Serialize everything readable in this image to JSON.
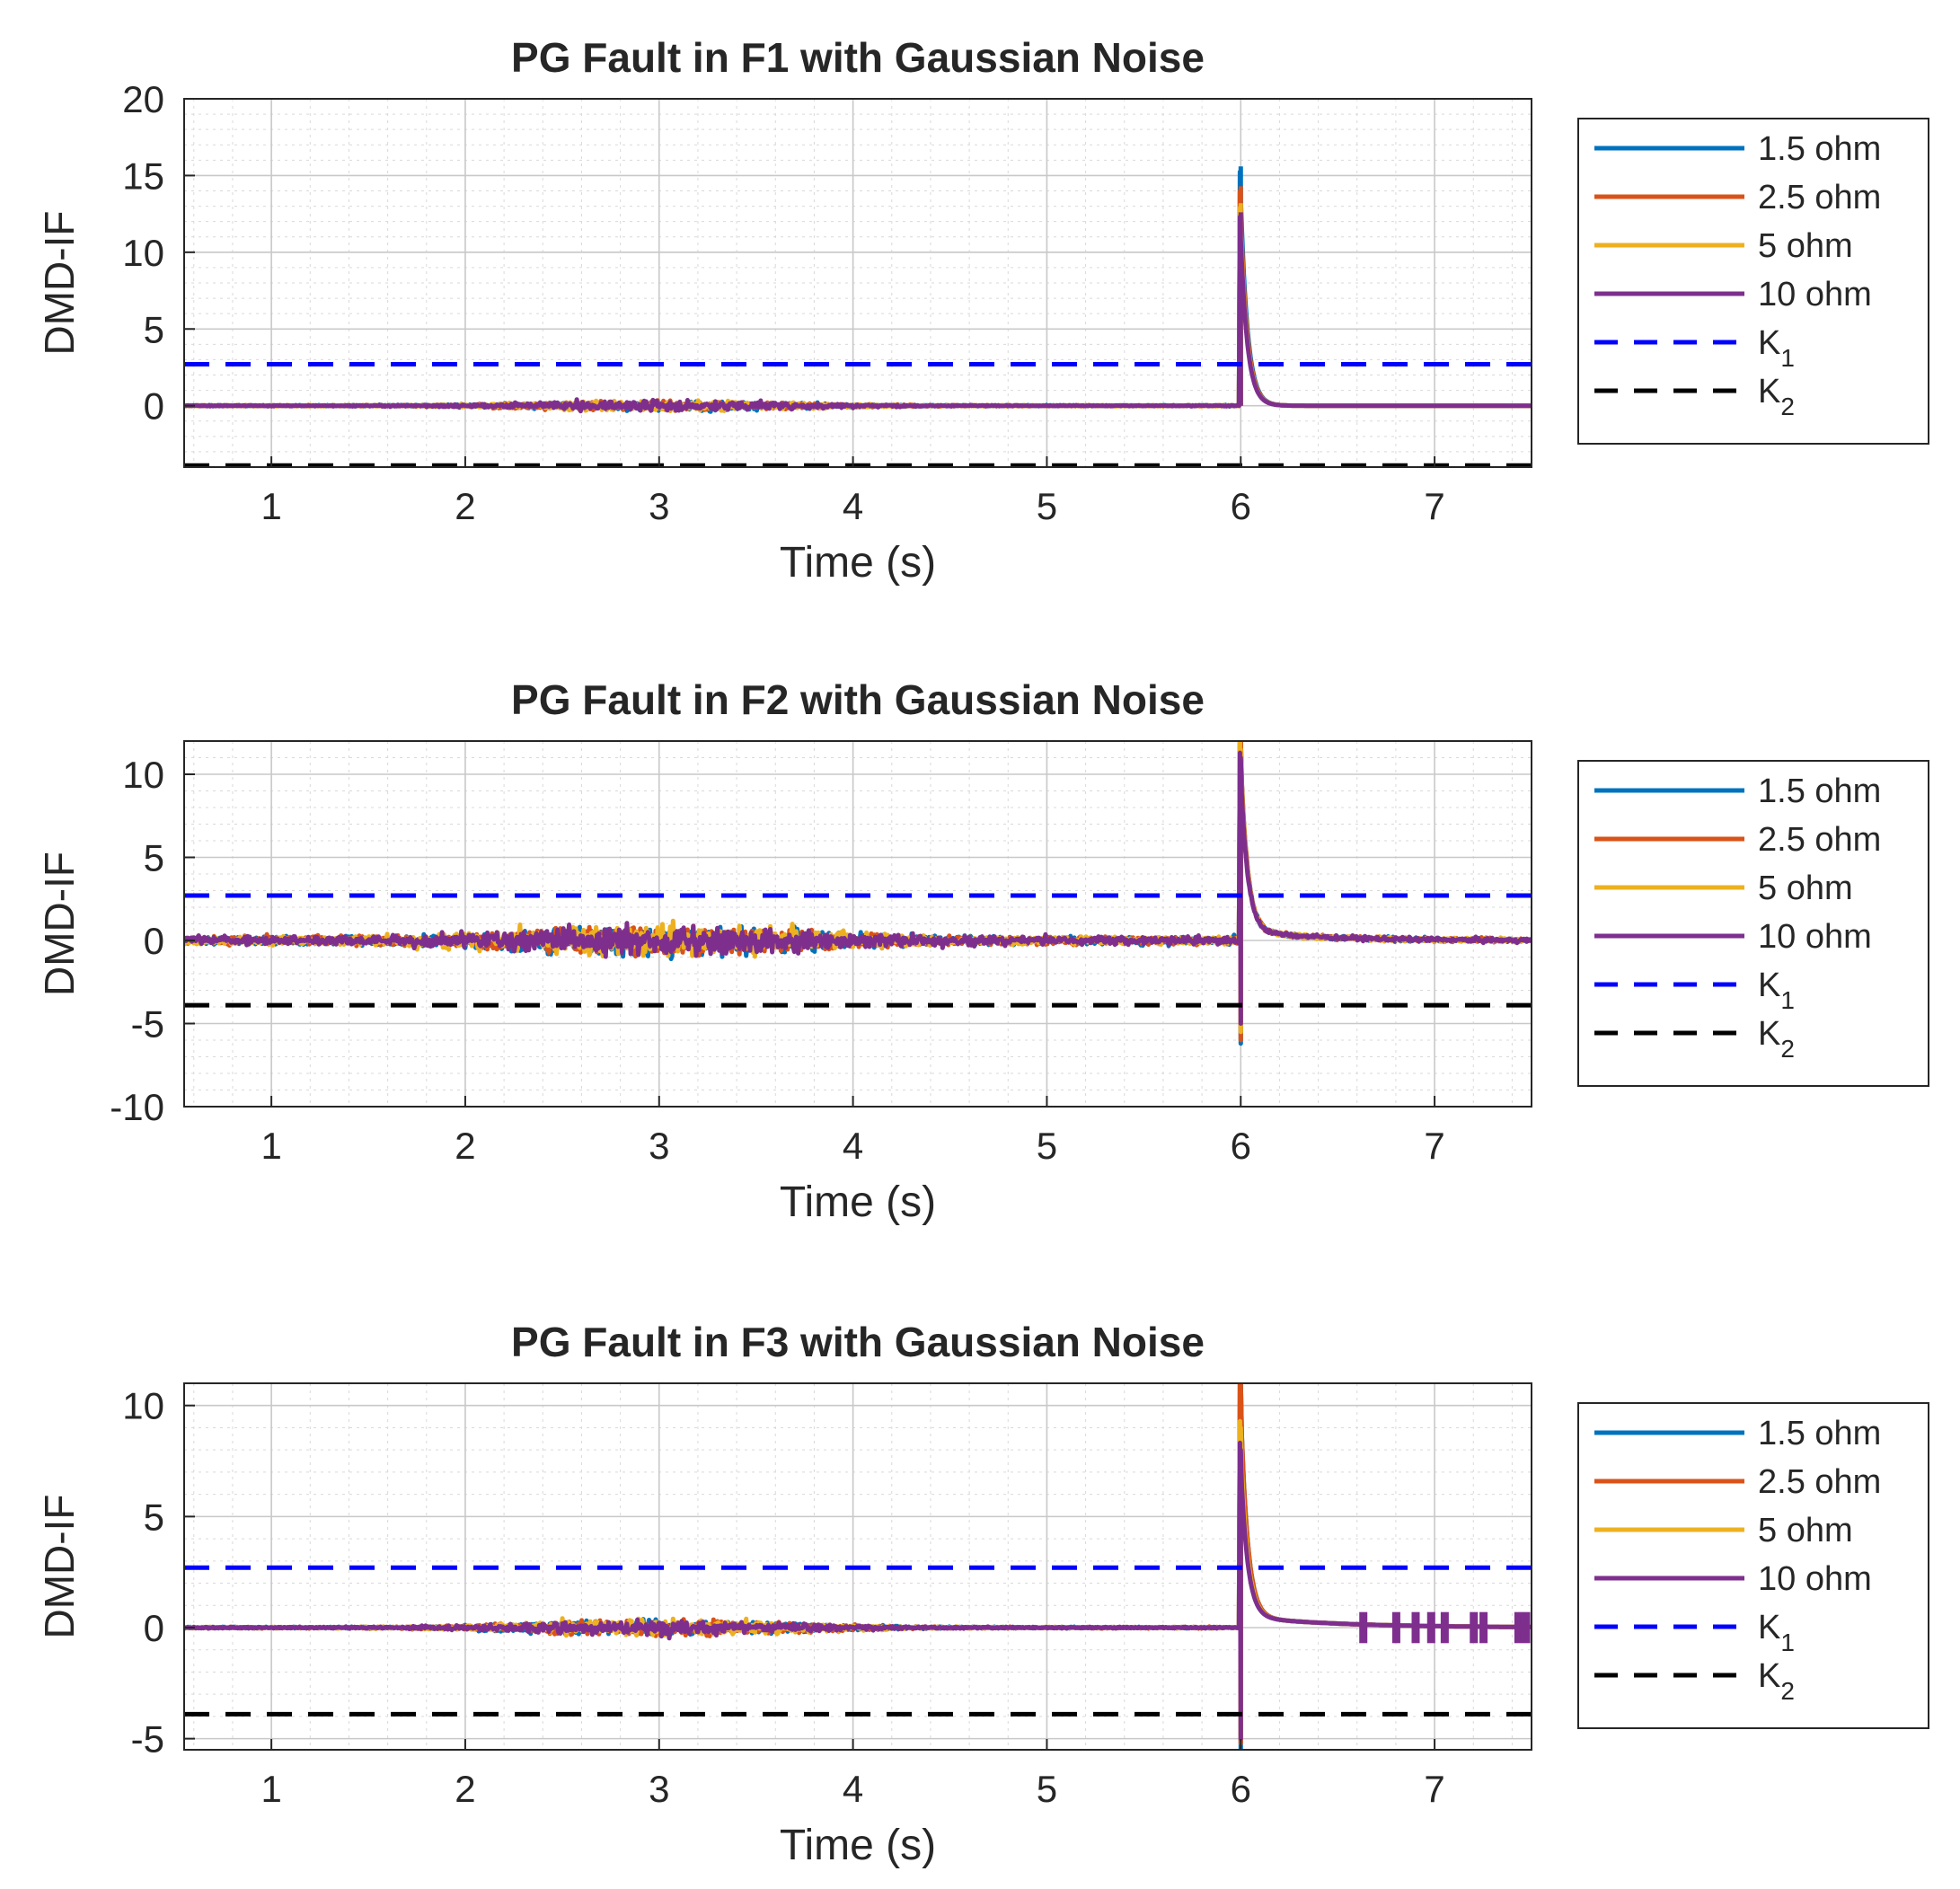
{
  "colors": {
    "s1": "#0072BD",
    "s2": "#D95319",
    "s3": "#EDB120",
    "s4": "#7E2F8E",
    "k1": "#0000FF",
    "k2": "#000000"
  },
  "chart_data": [
    {
      "type": "line",
      "title": "PG Fault in F1 with Gaussian Noise",
      "xlabel": "Time (s)",
      "ylabel": "DMD-IF",
      "xlim": [
        0.55,
        7.5
      ],
      "ylim": [
        -4,
        20
      ],
      "xticks": [
        "1",
        "2",
        "3",
        "4",
        "5",
        "6",
        "7"
      ],
      "yticks": [
        "0",
        "5",
        "10",
        "15",
        "20"
      ],
      "grid": true,
      "legend_location": "right-outside",
      "series": [
        {
          "name": "1.5 ohm",
          "color_key": "s1",
          "peak": 15.6,
          "noise": 0.55
        },
        {
          "name": "2.5 ohm",
          "color_key": "s2",
          "peak": 14.3,
          "noise": 0.55
        },
        {
          "name": "5 ohm",
          "color_key": "s3",
          "peak": 13.2,
          "noise": 0.55
        },
        {
          "name": "10 ohm",
          "color_key": "s4",
          "peak": 12.6,
          "noise": 0.55
        }
      ],
      "thresholds": [
        {
          "name": "K",
          "sub": "1",
          "value": 2.7,
          "color_key": "k1"
        },
        {
          "name": "K",
          "sub": "2",
          "value": -3.9,
          "color_key": "k2"
        }
      ]
    },
    {
      "type": "line",
      "title": "PG Fault in F2 with Gaussian Noise",
      "xlabel": "Time (s)",
      "ylabel": "DMD-IF",
      "xlim": [
        0.55,
        7.5
      ],
      "ylim": [
        -10,
        12
      ],
      "xticks": [
        "1",
        "2",
        "3",
        "4",
        "5",
        "6",
        "7"
      ],
      "yticks": [
        "-10",
        "-5",
        "0",
        "5",
        "10"
      ],
      "grid": true,
      "legend_location": "right-outside",
      "series": [
        {
          "name": "1.5 ohm",
          "color_key": "s1",
          "peak": 12,
          "trough": -6.2,
          "noise": 1.6
        },
        {
          "name": "2.5 ohm",
          "color_key": "s2",
          "peak": 12,
          "trough": -6.0,
          "noise": 1.6
        },
        {
          "name": "5 ohm",
          "color_key": "s3",
          "peak": 11.5,
          "trough": -5.5,
          "noise": 1.6
        },
        {
          "name": "10 ohm",
          "color_key": "s4",
          "peak": 11,
          "trough": -5.0,
          "noise": 1.6
        }
      ],
      "thresholds": [
        {
          "name": "K",
          "sub": "1",
          "value": 2.7,
          "color_key": "k1"
        },
        {
          "name": "K",
          "sub": "2",
          "value": -3.9,
          "color_key": "k2"
        }
      ]
    },
    {
      "type": "line",
      "title": "PG Fault in F3 with Gaussian Noise",
      "xlabel": "Time (s)",
      "ylabel": "DMD-IF",
      "xlim": [
        0.55,
        7.5
      ],
      "ylim": [
        -5.5,
        11
      ],
      "xticks": [
        "1",
        "2",
        "3",
        "4",
        "5",
        "6",
        "7"
      ],
      "yticks": [
        "-5",
        "0",
        "5",
        "10"
      ],
      "grid": true,
      "legend_location": "right-outside",
      "series": [
        {
          "name": "1.5 ohm",
          "color_key": "s1",
          "peak": 11,
          "trough": -5.5,
          "noise": 0.6
        },
        {
          "name": "2.5 ohm",
          "color_key": "s2",
          "peak": 11,
          "trough": -5.2,
          "noise": 0.6
        },
        {
          "name": "5 ohm",
          "color_key": "s3",
          "peak": 9.0,
          "trough": -5.0,
          "noise": 0.6
        },
        {
          "name": "10 ohm",
          "color_key": "s4",
          "peak": 8.0,
          "trough": -5.0,
          "noise": 0.6
        }
      ],
      "thresholds": [
        {
          "name": "K",
          "sub": "1",
          "value": 2.7,
          "color_key": "k1"
        },
        {
          "name": "K",
          "sub": "2",
          "value": -3.9,
          "color_key": "k2"
        }
      ]
    }
  ]
}
